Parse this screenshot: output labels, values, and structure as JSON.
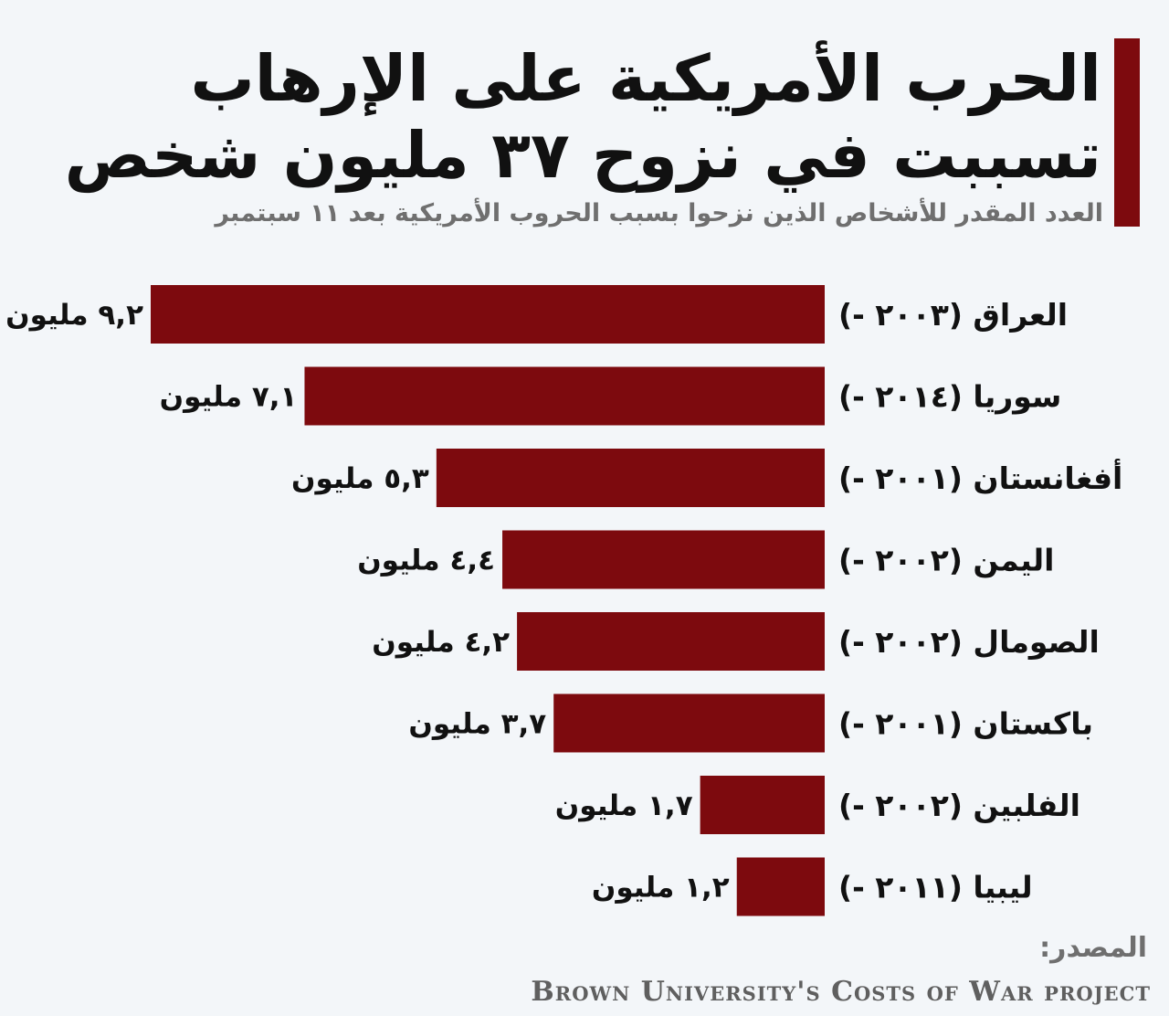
{
  "header": {
    "title_line1": "الحرب الأمريكية على الإرهاب",
    "title_line2": "تسببت في نزوح ٣٧ مليون شخص",
    "subtitle": "العدد المقدر للأشخاص الذين نزحوا بسبب الحروب الأمريكية بعد ١١ سبتمبر"
  },
  "colors": {
    "bar": "#7d0a0e",
    "accent": "#7d0a0e",
    "background": "#f3f6f9",
    "text": "#111111",
    "muted": "#6f6f6f"
  },
  "chart_data": {
    "type": "bar",
    "orientation": "horizontal",
    "direction": "rtl",
    "title": "الحرب الأمريكية على الإرهاب تسببت في نزوح ٣٧ مليون شخص",
    "subtitle": "العدد المقدر للأشخاص الذين نزحوا بسبب الحروب الأمريكية بعد ١١ سبتمبر",
    "categories": [
      "العراق (٢٠٠٣ -)",
      "سوريا (٢٠١٤ -)",
      "أفغانستان (٢٠٠١ -)",
      "اليمن (٢٠٠٢ -)",
      "الصومال (٢٠٠٢ -)",
      "باكستان (٢٠٠١ -)",
      "الفلبين (٢٠٠٢ -)",
      "ليبيا (٢٠١١ -)"
    ],
    "values": [
      9.2,
      7.1,
      5.3,
      4.4,
      4.2,
      3.7,
      1.7,
      1.2
    ],
    "value_labels": [
      "٩,٢ مليون",
      "٧,١ مليون",
      "٥,٣ مليون",
      "٤,٤ مليون",
      "٤,٢ مليون",
      "٣,٧ مليون",
      "١,٧ مليون",
      "١,٢ مليون"
    ],
    "xlim": [
      0,
      9.2
    ],
    "grid": false,
    "legend": "none"
  },
  "source": {
    "label": "المصدر:",
    "text": "Brown University's Costs of War project"
  }
}
